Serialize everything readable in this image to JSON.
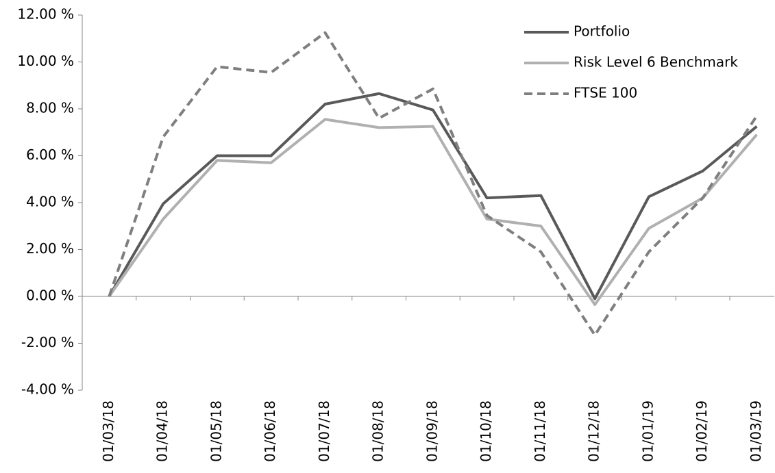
{
  "chart_data": {
    "type": "line",
    "categories": [
      "01/03/18",
      "01/04/18",
      "01/05/18",
      "01/06/18",
      "01/07/18",
      "01/08/18",
      "01/09/18",
      "01/10/18",
      "01/11/18",
      "01/12/18",
      "01/01/19",
      "01/02/19",
      "01/03/19"
    ],
    "series": [
      {
        "name": "Portfolio",
        "color": "#595959",
        "dashed": false,
        "values": [
          0,
          3.95,
          6.0,
          6.0,
          8.2,
          8.65,
          7.95,
          4.2,
          4.3,
          -0.1,
          4.25,
          5.35,
          7.25
        ]
      },
      {
        "name": "Risk Level 6 Benchmark",
        "color": "#b0b0b0",
        "dashed": false,
        "values": [
          0,
          3.3,
          5.8,
          5.7,
          7.55,
          7.2,
          7.25,
          3.3,
          3.0,
          -0.35,
          2.9,
          4.2,
          6.9
        ]
      },
      {
        "name": "FTSE 100",
        "color": "#7f7f7f",
        "dashed": true,
        "values": [
          0,
          6.8,
          9.8,
          9.55,
          11.25,
          7.6,
          8.85,
          3.45,
          1.9,
          -1.65,
          1.9,
          4.2,
          7.7
        ]
      }
    ],
    "ylim": [
      -4,
      12
    ],
    "yticks": [
      {
        "value": -4,
        "label": "-4.00 %"
      },
      {
        "value": -2,
        "label": "-2.00 %"
      },
      {
        "value": 0,
        "label": "0.00 %"
      },
      {
        "value": 2,
        "label": "2.00 %"
      },
      {
        "value": 4,
        "label": "4.00 %"
      },
      {
        "value": 6,
        "label": "6.00 %"
      },
      {
        "value": 8,
        "label": "8.00 %"
      },
      {
        "value": 10,
        "label": "10.00 %"
      },
      {
        "value": 12,
        "label": "12.00 %"
      }
    ],
    "grid": false,
    "legend": "top-right"
  }
}
